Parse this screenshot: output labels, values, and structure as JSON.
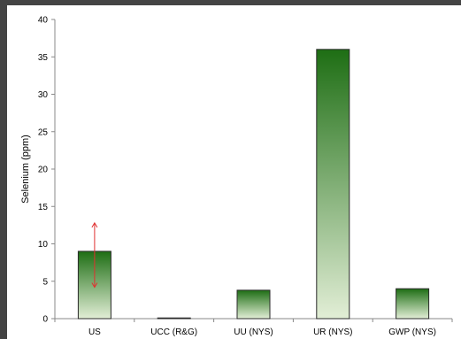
{
  "chart_data": {
    "type": "bar",
    "title": "",
    "xlabel": "",
    "ylabel": "Selenium (ppm)",
    "ylim": [
      0,
      40
    ],
    "yticks": [
      0,
      5,
      10,
      15,
      20,
      25,
      30,
      35,
      40
    ],
    "categories": [
      "US",
      "UCC (R&G)",
      "UU (NYS)",
      "UR (NYS)",
      "GWP (NYS)"
    ],
    "series": [
      {
        "values": [
          9,
          0,
          3.8,
          36,
          4
        ]
      }
    ],
    "error_bars": [
      {
        "category": "US",
        "low": 4.2,
        "high": 12.8,
        "color": "#e03030"
      }
    ],
    "grid": false,
    "legend": "none",
    "colors": {
      "bar_top": "#1e6e14",
      "bar_bottom": "#e2eed6",
      "bar_outline": "#2a2a2a",
      "axis": "#888888",
      "page_background": "#444444",
      "plot_background": "#ffffff"
    }
  }
}
